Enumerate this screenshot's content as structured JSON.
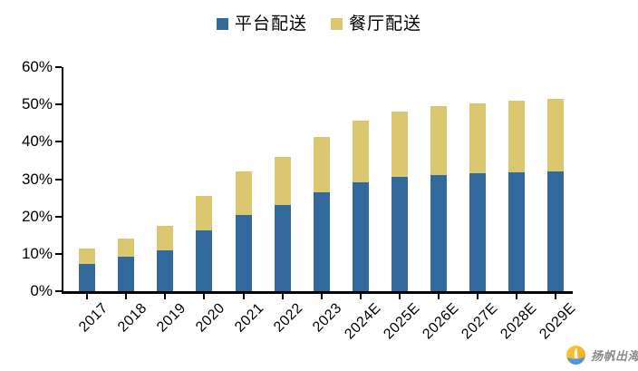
{
  "legend": {
    "items": [
      {
        "key": "platform",
        "label": "平台配送",
        "color": "#336A9E"
      },
      {
        "key": "restaurant",
        "label": "餐厅配送",
        "color": "#DBC76F"
      }
    ]
  },
  "chart_data": {
    "type": "bar",
    "stacked": true,
    "title": "",
    "categories": [
      "2017",
      "2018",
      "2019",
      "2020",
      "2021",
      "2022",
      "2023",
      "2024E",
      "2025E",
      "2026E",
      "2027E",
      "2028E",
      "2029E"
    ],
    "series": [
      {
        "name": "平台配送",
        "key": "platform",
        "color": "#336A9E",
        "values": [
          7.4,
          9.3,
          11.0,
          16.2,
          20.3,
          23.0,
          26.6,
          29.2,
          30.6,
          31.2,
          31.6,
          31.9,
          32.1
        ]
      },
      {
        "name": "餐厅配送",
        "key": "restaurant",
        "color": "#DBC76F",
        "values": [
          4.0,
          4.8,
          6.4,
          9.2,
          11.7,
          13.0,
          14.8,
          16.4,
          17.5,
          18.3,
          18.6,
          19.0,
          19.3
        ]
      }
    ],
    "totals": [
      11.4,
      14.1,
      17.4,
      25.4,
      32.0,
      36.0,
      41.4,
      45.6,
      48.1,
      49.5,
      50.2,
      50.9,
      51.4
    ],
    "xlabel": "",
    "ylabel": "",
    "ylim": [
      0,
      60
    ],
    "y_tick_labels": [
      "0%",
      "10%",
      "20%",
      "30%",
      "40%",
      "50%",
      "60%"
    ],
    "grid": false,
    "legend_position": "top"
  },
  "watermark": {
    "text": "扬帆出海"
  }
}
